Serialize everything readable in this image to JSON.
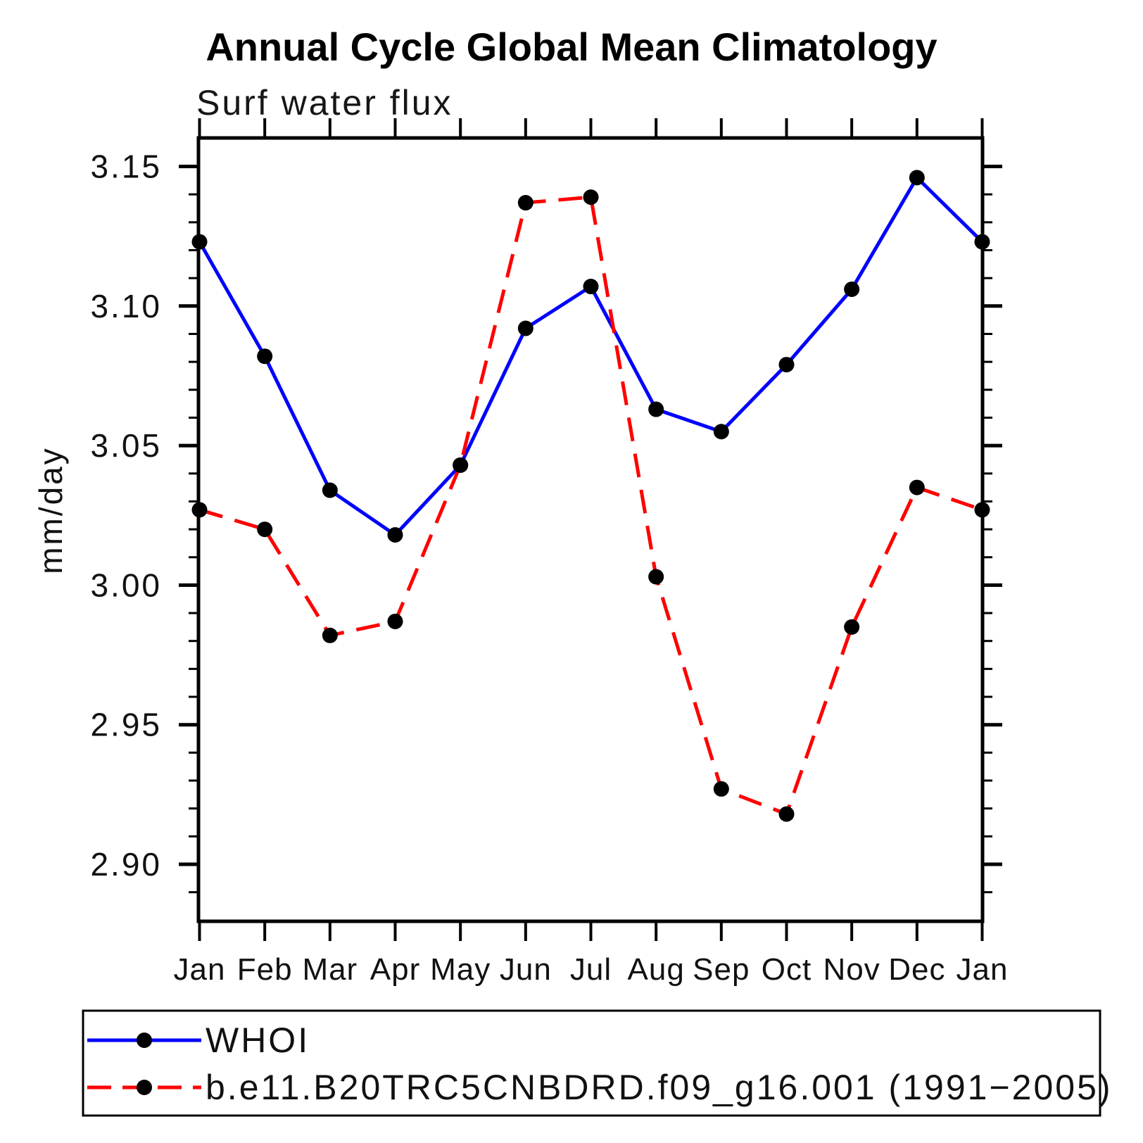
{
  "title": "Annual Cycle Global Mean Climatology",
  "subtitle": "Surf water flux",
  "ylabel": "mm/day",
  "chart_data": {
    "type": "line",
    "title": "Annual Cycle Global Mean Climatology",
    "subtitle": "Surf water flux",
    "xlabel": "",
    "ylabel": "mm/day",
    "categories": [
      "Jan",
      "Feb",
      "Mar",
      "Apr",
      "May",
      "Jun",
      "Jul",
      "Aug",
      "Sep",
      "Oct",
      "Nov",
      "Dec",
      "Jan"
    ],
    "y_ticks_major": [
      3.15,
      3.1,
      3.05,
      3.0,
      2.95,
      2.9
    ],
    "y_minor_step": 0.01,
    "ylim": [
      2.88,
      3.16
    ],
    "grid": false,
    "legend_position": "bottom-box",
    "series": [
      {
        "name": "WHOI",
        "color": "#0000ff",
        "style": "solid",
        "marker": "circle",
        "marker_color": "#000000",
        "values": [
          3.123,
          3.082,
          3.034,
          3.018,
          3.043,
          3.092,
          3.107,
          3.063,
          3.055,
          3.079,
          3.106,
          3.146,
          3.123
        ]
      },
      {
        "name": "b.e11.B20TRC5CNBDRD.f09_g16.001 (1991−2005)",
        "color": "#ff0000",
        "style": "dashed",
        "marker": "circle",
        "marker_color": "#000000",
        "values": [
          3.027,
          3.02,
          2.982,
          2.987,
          3.043,
          3.137,
          3.139,
          3.003,
          2.927,
          2.918,
          2.985,
          3.035,
          3.027
        ]
      }
    ]
  }
}
